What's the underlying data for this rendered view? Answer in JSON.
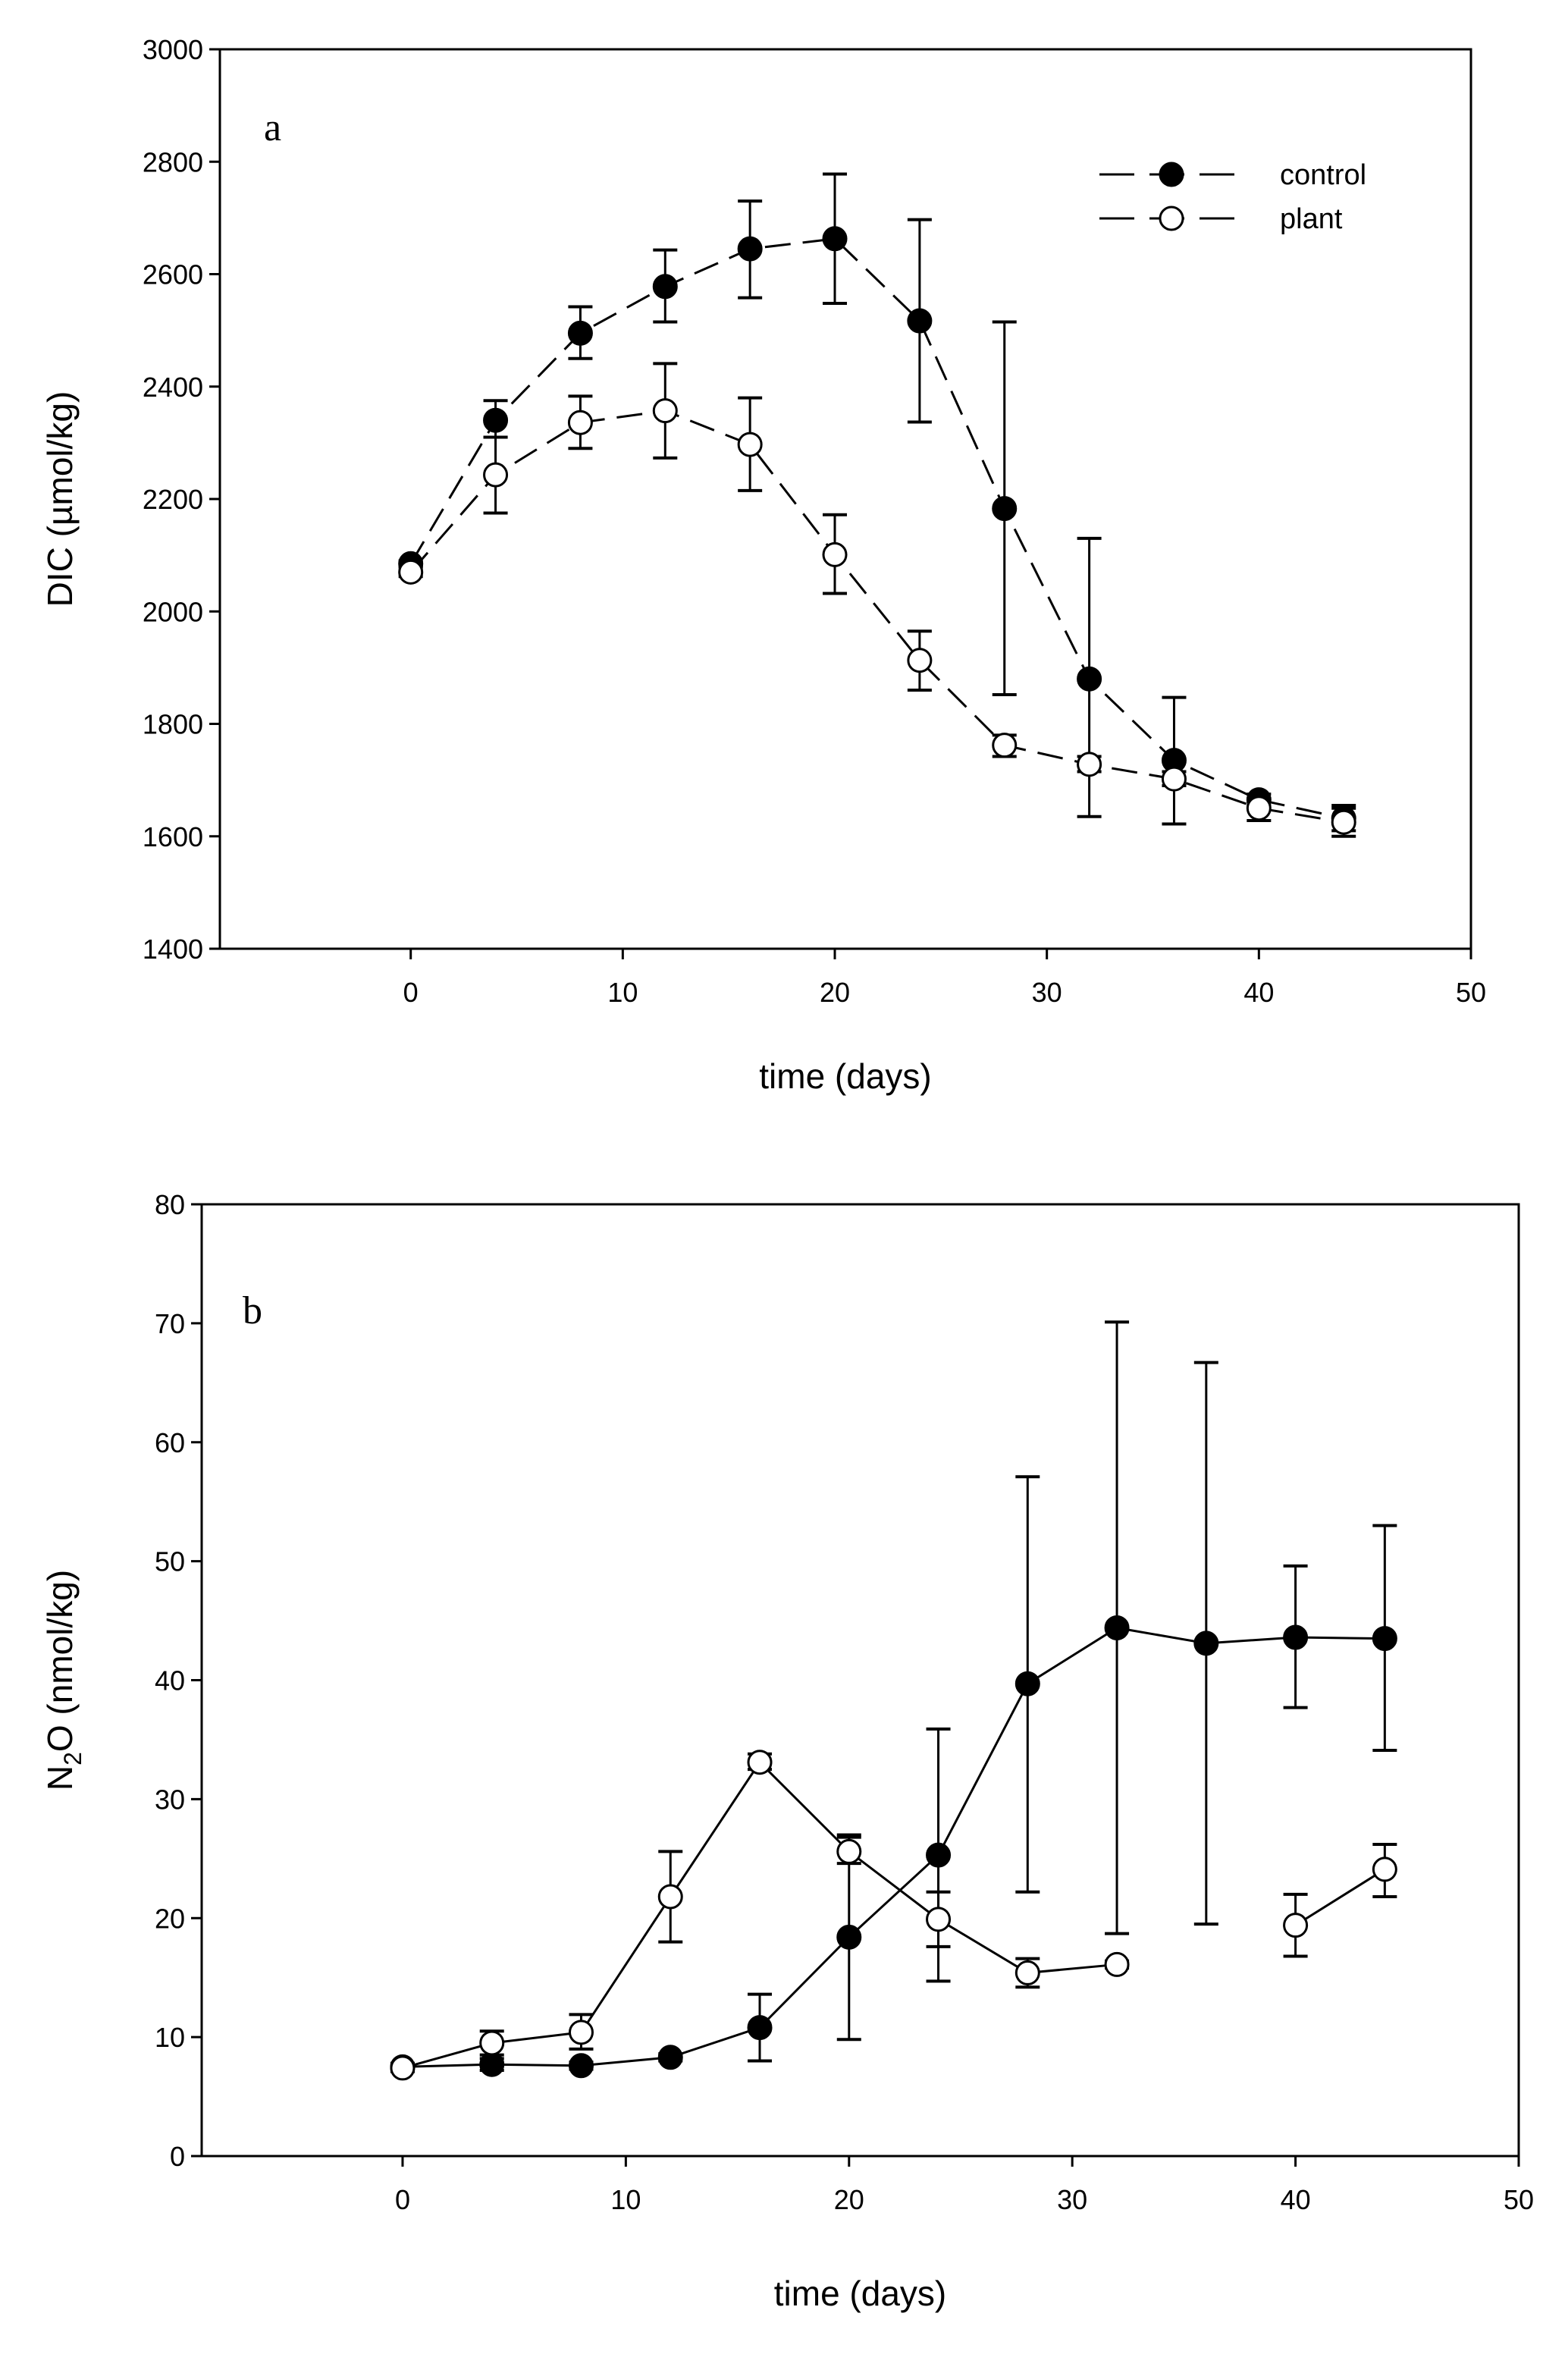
{
  "chart_data": [
    {
      "type": "line",
      "panel_label": "a",
      "xlabel": "time (days)",
      "ylabel": "DIC (µmol/kg)",
      "xlim": [
        -9,
        50
      ],
      "ylim": [
        1400,
        3000
      ],
      "xticks": [
        0,
        10,
        20,
        30,
        40,
        50
      ],
      "yticks": [
        1400,
        1600,
        1800,
        2000,
        2200,
        2400,
        2600,
        2800,
        3000
      ],
      "grid": false,
      "line_style": "dashed",
      "legend_position": "top-right",
      "x": [
        0,
        4,
        8,
        12,
        16,
        20,
        24,
        28,
        32,
        36,
        40,
        44
      ],
      "series": [
        {
          "name": "control",
          "marker": "filled-circle",
          "values": [
            2085,
            2340,
            2495,
            2578,
            2645,
            2663,
            2517,
            2183,
            1880,
            1735,
            1665,
            1632
          ],
          "errors": [
            [
              2080,
              2090
            ],
            [
              2310,
              2375
            ],
            [
              2450,
              2542
            ],
            [
              2515,
              2643
            ],
            [
              2558,
              2730
            ],
            [
              2548,
              2778
            ],
            [
              2337,
              2697
            ],
            [
              1852,
              2515
            ],
            [
              1635,
              2130
            ],
            [
              1622,
              1847
            ],
            [
              1655,
              1675
            ],
            [
              1610,
              1655
            ]
          ]
        },
        {
          "name": "plant",
          "marker": "open-circle",
          "values": [
            2070,
            2243,
            2336,
            2357,
            2297,
            2101,
            1913,
            1762,
            1728,
            1702,
            1650,
            1625
          ],
          "errors": [
            [
              2062,
              2078
            ],
            [
              2175,
              2310
            ],
            [
              2290,
              2383
            ],
            [
              2273,
              2441
            ],
            [
              2215,
              2380
            ],
            [
              2032,
              2172
            ],
            [
              1860,
              1965
            ],
            [
              1742,
              1780
            ],
            [
              1715,
              1742
            ],
            [
              1690,
              1715
            ],
            [
              1628,
              1665
            ],
            [
              1600,
              1650
            ]
          ]
        }
      ]
    },
    {
      "type": "line",
      "panel_label": "b",
      "xlabel": "time (days)",
      "ylabel_main": "N",
      "ylabel_sub": "2",
      "ylabel_rest": "O (nmol/kg)",
      "xlim": [
        -9,
        50
      ],
      "ylim": [
        0,
        80
      ],
      "xticks": [
        0,
        10,
        20,
        30,
        40,
        50
      ],
      "yticks": [
        0,
        10,
        20,
        30,
        40,
        50,
        60,
        70,
        80
      ],
      "grid": false,
      "line_style": "solid",
      "x": [
        0,
        4,
        8,
        12,
        16,
        20,
        24,
        28,
        32,
        36,
        40,
        44
      ],
      "series": [
        {
          "name": "control",
          "marker": "filled-circle",
          "values": [
            7.5,
            7.7,
            7.6,
            8.3,
            10.8,
            18.4,
            25.3,
            39.7,
            44.4,
            43.1,
            43.6,
            43.5
          ],
          "errors": [
            [
              7.2,
              7.8
            ],
            [
              7.2,
              8.2
            ],
            [
              7.3,
              7.9
            ],
            [
              8.0,
              8.6
            ],
            [
              8.0,
              13.6
            ],
            [
              9.8,
              27.0
            ],
            [
              14.7,
              35.9
            ],
            [
              22.2,
              57.1
            ],
            [
              18.7,
              70.1
            ],
            [
              19.5,
              66.7
            ],
            [
              37.7,
              49.6
            ],
            [
              34.1,
              53.0
            ]
          ]
        },
        {
          "name": "plant",
          "marker": "open-circle",
          "values": [
            7.4,
            9.5,
            10.4,
            21.8,
            33.1,
            25.6,
            19.9,
            15.4,
            16.1,
            null,
            19.4,
            24.1
          ],
          "errors": [
            [
              7.1,
              7.7
            ],
            [
              8.5,
              10.5
            ],
            [
              9.0,
              11.9
            ],
            [
              18.0,
              25.6
            ],
            [
              32.5,
              33.8
            ],
            [
              24.6,
              26.8
            ],
            [
              17.6,
              22.2
            ],
            [
              14.2,
              16.6
            ],
            [
              15.8,
              16.4
            ],
            null,
            [
              16.8,
              22.0
            ],
            [
              21.8,
              26.2
            ]
          ]
        }
      ]
    }
  ]
}
